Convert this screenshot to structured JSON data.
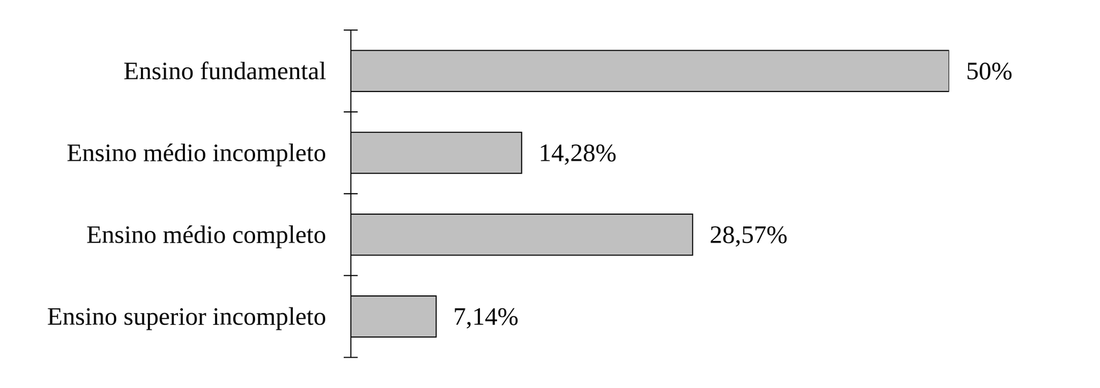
{
  "chart_data": {
    "type": "bar",
    "orientation": "horizontal",
    "categories": [
      "Ensino fundamental",
      "Ensino médio incompleto",
      "Ensino médio completo",
      "Ensino superior incompleto"
    ],
    "values": [
      50,
      14.28,
      28.57,
      7.14
    ],
    "value_labels": [
      "50%",
      "14,28%",
      "28,57%",
      "7,14%"
    ],
    "color": "#c0c0c0",
    "xlim": [
      0,
      50
    ],
    "data_labels": true,
    "tick_labels": "y",
    "grid": false
  }
}
